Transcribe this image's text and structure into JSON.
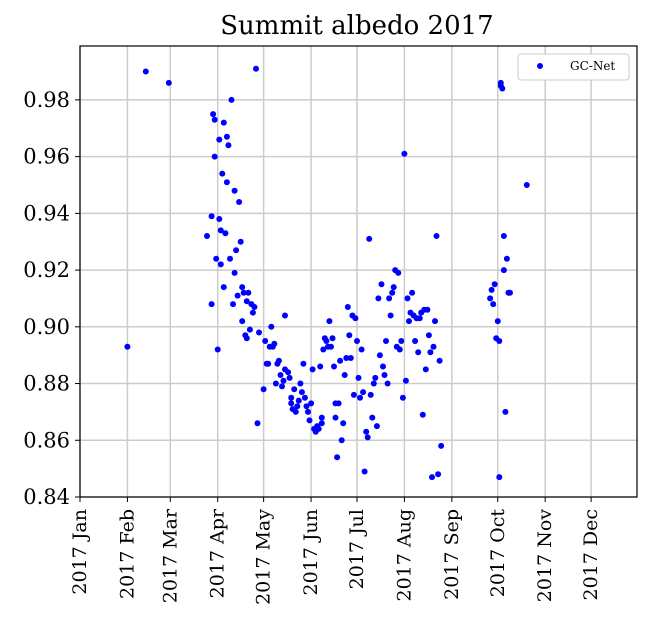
{
  "chart_data": {
    "type": "scatter",
    "title": "Summit albedo 2017",
    "xlabel": "",
    "ylabel": "",
    "xlim": [
      "2017-01-01",
      "2017-12-31"
    ],
    "ylim": [
      0.84,
      0.999
    ],
    "grid": true,
    "legend_position": "top-right",
    "x_tick_labels": [
      "2017 Jan",
      "2017 Feb",
      "2017 Mar",
      "2017 Apr",
      "2017 May",
      "2017 Jun",
      "2017 Jul",
      "2017 Aug",
      "2017 Sep",
      "2017 Oct",
      "2017 Nov",
      "2017 Dec"
    ],
    "x_tick_dates": [
      "2017-01-01",
      "2017-02-01",
      "2017-03-01",
      "2017-04-01",
      "2017-05-01",
      "2017-06-01",
      "2017-07-01",
      "2017-08-01",
      "2017-09-01",
      "2017-10-01",
      "2017-11-01",
      "2017-12-01"
    ],
    "y_tick_labels": [
      "0.84",
      "0.86",
      "0.88",
      "0.90",
      "0.92",
      "0.94",
      "0.96",
      "0.98"
    ],
    "y_tick_values": [
      0.84,
      0.86,
      0.88,
      0.9,
      0.92,
      0.94,
      0.96,
      0.98
    ],
    "series": [
      {
        "name": "GC-Net",
        "color": "#0000ff",
        "marker": "circle",
        "points": [
          [
            "2017-02-01",
            0.893
          ],
          [
            "2017-02-13",
            0.99
          ],
          [
            "2017-02-28",
            0.986
          ],
          [
            "2017-03-25",
            0.932
          ],
          [
            "2017-03-28",
            0.908
          ],
          [
            "2017-03-28",
            0.939
          ],
          [
            "2017-03-29",
            0.975
          ],
          [
            "2017-03-30",
            0.96
          ],
          [
            "2017-03-30",
            0.973
          ],
          [
            "2017-03-31",
            0.924
          ],
          [
            "2017-04-01",
            0.892
          ],
          [
            "2017-04-02",
            0.966
          ],
          [
            "2017-04-02",
            0.938
          ],
          [
            "2017-04-03",
            0.934
          ],
          [
            "2017-04-03",
            0.922
          ],
          [
            "2017-04-04",
            0.954
          ],
          [
            "2017-04-05",
            0.972
          ],
          [
            "2017-04-05",
            0.914
          ],
          [
            "2017-04-06",
            0.933
          ],
          [
            "2017-04-07",
            0.951
          ],
          [
            "2017-04-07",
            0.967
          ],
          [
            "2017-04-08",
            0.964
          ],
          [
            "2017-04-09",
            0.924
          ],
          [
            "2017-04-10",
            0.98
          ],
          [
            "2017-04-11",
            0.908
          ],
          [
            "2017-04-12",
            0.948
          ],
          [
            "2017-04-12",
            0.919
          ],
          [
            "2017-04-13",
            0.927
          ],
          [
            "2017-04-14",
            0.911
          ],
          [
            "2017-04-15",
            0.944
          ],
          [
            "2017-04-16",
            0.93
          ],
          [
            "2017-04-17",
            0.902
          ],
          [
            "2017-04-17",
            0.914
          ],
          [
            "2017-04-18",
            0.912
          ],
          [
            "2017-04-19",
            0.897
          ],
          [
            "2017-04-20",
            0.896
          ],
          [
            "2017-04-20",
            0.909
          ],
          [
            "2017-04-21",
            0.912
          ],
          [
            "2017-04-22",
            0.899
          ],
          [
            "2017-04-23",
            0.908
          ],
          [
            "2017-04-24",
            0.905
          ],
          [
            "2017-04-25",
            0.907
          ],
          [
            "2017-04-26",
            0.991
          ],
          [
            "2017-04-27",
            0.866
          ],
          [
            "2017-04-28",
            0.898
          ],
          [
            "2017-05-01",
            0.878
          ],
          [
            "2017-05-02",
            0.895
          ],
          [
            "2017-05-03",
            0.887
          ],
          [
            "2017-05-04",
            0.887
          ],
          [
            "2017-05-05",
            0.893
          ],
          [
            "2017-05-06",
            0.9
          ],
          [
            "2017-05-07",
            0.893
          ],
          [
            "2017-05-08",
            0.894
          ],
          [
            "2017-05-09",
            0.88
          ],
          [
            "2017-05-10",
            0.887
          ],
          [
            "2017-05-11",
            0.888
          ],
          [
            "2017-05-12",
            0.883
          ],
          [
            "2017-05-13",
            0.879
          ],
          [
            "2017-05-14",
            0.881
          ],
          [
            "2017-05-15",
            0.885
          ],
          [
            "2017-05-15",
            0.904
          ],
          [
            "2017-05-17",
            0.884
          ],
          [
            "2017-05-18",
            0.882
          ],
          [
            "2017-05-19",
            0.875
          ],
          [
            "2017-05-19",
            0.873
          ],
          [
            "2017-05-20",
            0.871
          ],
          [
            "2017-05-21",
            0.878
          ],
          [
            "2017-05-22",
            0.87
          ],
          [
            "2017-05-23",
            0.872
          ],
          [
            "2017-05-24",
            0.874
          ],
          [
            "2017-05-25",
            0.88
          ],
          [
            "2017-05-26",
            0.877
          ],
          [
            "2017-05-27",
            0.887
          ],
          [
            "2017-05-28",
            0.875
          ],
          [
            "2017-05-29",
            0.872
          ],
          [
            "2017-05-30",
            0.87
          ],
          [
            "2017-05-31",
            0.867
          ],
          [
            "2017-06-01",
            0.873
          ],
          [
            "2017-06-02",
            0.885
          ],
          [
            "2017-06-03",
            0.864
          ],
          [
            "2017-06-04",
            0.863
          ],
          [
            "2017-06-05",
            0.865
          ],
          [
            "2017-06-06",
            0.864
          ],
          [
            "2017-06-07",
            0.886
          ],
          [
            "2017-06-08",
            0.868
          ],
          [
            "2017-06-08",
            0.866
          ],
          [
            "2017-06-09",
            0.892
          ],
          [
            "2017-06-10",
            0.896
          ],
          [
            "2017-06-11",
            0.895
          ],
          [
            "2017-06-12",
            0.893
          ],
          [
            "2017-06-13",
            0.902
          ],
          [
            "2017-06-14",
            0.893
          ],
          [
            "2017-06-15",
            0.896
          ],
          [
            "2017-06-16",
            0.886
          ],
          [
            "2017-06-17",
            0.873
          ],
          [
            "2017-06-17",
            0.868
          ],
          [
            "2017-06-18",
            0.854
          ],
          [
            "2017-06-19",
            0.873
          ],
          [
            "2017-06-20",
            0.888
          ],
          [
            "2017-06-21",
            0.86
          ],
          [
            "2017-06-22",
            0.866
          ],
          [
            "2017-06-23",
            0.883
          ],
          [
            "2017-06-24",
            0.889
          ],
          [
            "2017-06-25",
            0.907
          ],
          [
            "2017-06-26",
            0.897
          ],
          [
            "2017-06-27",
            0.889
          ],
          [
            "2017-06-28",
            0.904
          ],
          [
            "2017-06-29",
            0.876
          ],
          [
            "2017-06-30",
            0.903
          ],
          [
            "2017-07-01",
            0.895
          ],
          [
            "2017-07-02",
            0.882
          ],
          [
            "2017-07-03",
            0.875
          ],
          [
            "2017-07-04",
            0.892
          ],
          [
            "2017-07-05",
            0.877
          ],
          [
            "2017-07-06",
            0.849
          ],
          [
            "2017-07-07",
            0.863
          ],
          [
            "2017-07-08",
            0.861
          ],
          [
            "2017-07-09",
            0.931
          ],
          [
            "2017-07-10",
            0.876
          ],
          [
            "2017-07-11",
            0.868
          ],
          [
            "2017-07-12",
            0.88
          ],
          [
            "2017-07-13",
            0.882
          ],
          [
            "2017-07-14",
            0.865
          ],
          [
            "2017-07-15",
            0.91
          ],
          [
            "2017-07-16",
            0.89
          ],
          [
            "2017-07-17",
            0.915
          ],
          [
            "2017-07-18",
            0.886
          ],
          [
            "2017-07-19",
            0.883
          ],
          [
            "2017-07-20",
            0.895
          ],
          [
            "2017-07-21",
            0.88
          ],
          [
            "2017-07-22",
            0.91
          ],
          [
            "2017-07-23",
            0.904
          ],
          [
            "2017-07-24",
            0.912
          ],
          [
            "2017-07-25",
            0.914
          ],
          [
            "2017-07-26",
            0.92
          ],
          [
            "2017-07-27",
            0.893
          ],
          [
            "2017-07-28",
            0.919
          ],
          [
            "2017-07-29",
            0.892
          ],
          [
            "2017-07-30",
            0.895
          ],
          [
            "2017-07-31",
            0.875
          ],
          [
            "2017-08-01",
            0.961
          ],
          [
            "2017-08-02",
            0.881
          ],
          [
            "2017-08-03",
            0.91
          ],
          [
            "2017-08-04",
            0.902
          ],
          [
            "2017-08-05",
            0.905
          ],
          [
            "2017-08-06",
            0.912
          ],
          [
            "2017-08-07",
            0.904
          ],
          [
            "2017-08-08",
            0.895
          ],
          [
            "2017-08-09",
            0.903
          ],
          [
            "2017-08-10",
            0.891
          ],
          [
            "2017-08-11",
            0.903
          ],
          [
            "2017-08-12",
            0.905
          ],
          [
            "2017-08-13",
            0.869
          ],
          [
            "2017-08-14",
            0.906
          ],
          [
            "2017-08-15",
            0.885
          ],
          [
            "2017-08-16",
            0.906
          ],
          [
            "2017-08-17",
            0.897
          ],
          [
            "2017-08-18",
            0.891
          ],
          [
            "2017-08-19",
            0.847
          ],
          [
            "2017-08-20",
            0.893
          ],
          [
            "2017-08-21",
            0.902
          ],
          [
            "2017-08-22",
            0.932
          ],
          [
            "2017-08-23",
            0.848
          ],
          [
            "2017-08-24",
            0.888
          ],
          [
            "2017-08-25",
            0.858
          ],
          [
            "2017-09-26",
            0.91
          ],
          [
            "2017-09-27",
            0.913
          ],
          [
            "2017-09-28",
            0.908
          ],
          [
            "2017-09-29",
            0.915
          ],
          [
            "2017-09-30",
            0.896
          ],
          [
            "2017-10-01",
            0.902
          ],
          [
            "2017-10-02",
            0.895
          ],
          [
            "2017-10-02",
            0.847
          ],
          [
            "2017-10-03",
            0.985
          ],
          [
            "2017-10-03",
            0.986
          ],
          [
            "2017-10-04",
            0.984
          ],
          [
            "2017-10-05",
            0.932
          ],
          [
            "2017-10-05",
            0.92
          ],
          [
            "2017-10-06",
            0.87
          ],
          [
            "2017-10-07",
            0.924
          ],
          [
            "2017-10-08",
            0.912
          ],
          [
            "2017-10-09",
            0.912
          ],
          [
            "2017-10-20",
            0.95
          ]
        ]
      }
    ]
  }
}
